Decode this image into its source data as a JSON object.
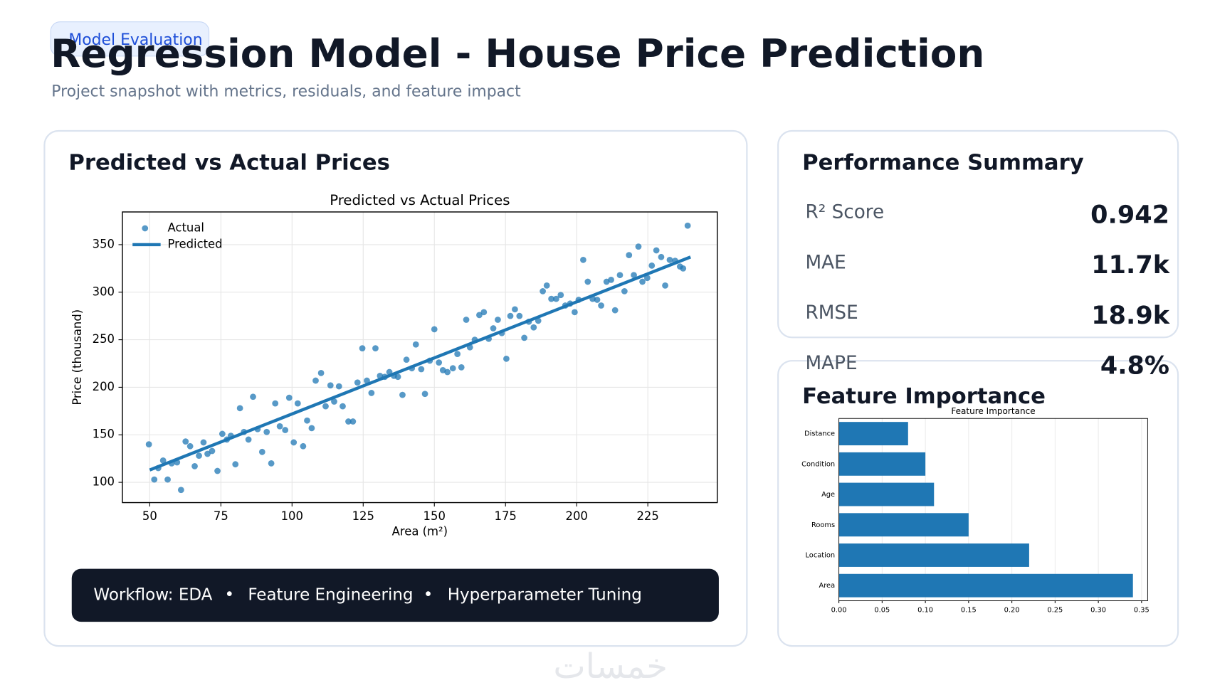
{
  "header": {
    "badge": "Model Evaluation",
    "title": "Regression Model - House Price Prediction",
    "subtitle": "Project snapshot with metrics, residuals, and feature impact"
  },
  "panels": {
    "scatter_title": "Predicted vs Actual Prices",
    "summary_title": "Performance Summary",
    "feature_title": "Feature Importance"
  },
  "metrics": [
    {
      "label": "R² Score",
      "value": "0.942"
    },
    {
      "label": "MAE",
      "value": "11.7k"
    },
    {
      "label": "RMSE",
      "value": "18.9k"
    },
    {
      "label": "MAPE",
      "value": "4.8%"
    }
  ],
  "workflow": {
    "items": [
      "Workflow: EDA",
      "Feature Engineering",
      "Hyperparameter Tuning"
    ],
    "separator": "•"
  },
  "footer": {
    "watermark": "خمسات"
  },
  "chart_data": [
    {
      "type": "scatter",
      "title": "Predicted vs Actual Prices",
      "xlabel": "Area (m²)",
      "ylabel": "Price (thousand)",
      "xlim": [
        40.4,
        249.4
      ],
      "ylim": [
        78.7,
        384.4
      ],
      "xticks": [
        50,
        75,
        100,
        125,
        150,
        175,
        200,
        225
      ],
      "yticks": [
        100,
        150,
        200,
        250,
        300,
        350
      ],
      "grid": true,
      "legend": "upper-left",
      "series": [
        {
          "name": "Actual",
          "color": "#1f77b4",
          "mode": "markers",
          "x": [
            49.7,
            51.6,
            53,
            54.7,
            56.3,
            57.7,
            59.6,
            61,
            62.6,
            64.2,
            65.8,
            67.3,
            68.9,
            70.3,
            71.9,
            73.8,
            75.5,
            77.1,
            78.5,
            80.1,
            81.7,
            83.1,
            84.7,
            86.3,
            87.9,
            89.5,
            91.1,
            92.7,
            94.1,
            95.7,
            97.6,
            99,
            100.6,
            102,
            103.9,
            105.3,
            106.9,
            108.3,
            110.2,
            111.8,
            113.5,
            114.8,
            116.5,
            117.8,
            119.8,
            121.4,
            123,
            124.7,
            126.3,
            127.9,
            129.3,
            130.9,
            132.6,
            134.2,
            135.8,
            137.2,
            138.8,
            140.2,
            142.1,
            143.5,
            145.4,
            146.7,
            148.4,
            150,
            151.6,
            153,
            154.6,
            156.5,
            158.1,
            159.5,
            161.2,
            162.5,
            164.2,
            165.8,
            167.4,
            169.1,
            170.7,
            172.3,
            173.7,
            175.3,
            176.7,
            178.3,
            179.9,
            181.6,
            183.2,
            184.9,
            186.5,
            188.1,
            189.5,
            191.1,
            192.8,
            194.4,
            196,
            197.7,
            199.3,
            200.7,
            202.3,
            203.9,
            205.6,
            207.2,
            208.6,
            210.5,
            212.1,
            213.5,
            215.2,
            216.8,
            218.4,
            220.1,
            221.7,
            223.1,
            224.8,
            226.4,
            228,
            229.7,
            231.1,
            232.7,
            234.6,
            236.3,
            237.4,
            239
          ],
          "values": [
            140,
            103,
            115,
            123,
            103,
            120,
            121,
            92,
            143,
            138,
            117,
            128,
            142,
            130,
            133,
            112,
            151,
            145,
            149,
            119,
            178,
            153,
            145,
            190,
            156,
            132,
            153,
            120,
            183,
            159,
            155,
            189,
            142,
            183,
            138,
            165,
            157,
            207,
            215,
            180,
            202,
            185,
            201,
            180,
            164,
            164,
            205,
            241,
            207,
            194,
            241,
            212,
            211,
            216,
            212,
            211,
            192,
            229,
            220,
            245,
            219,
            193,
            228,
            261,
            226,
            218,
            216,
            220,
            235,
            221,
            271,
            242,
            250,
            276,
            279,
            251,
            262,
            271,
            257,
            230,
            275,
            282,
            275,
            252,
            269,
            263,
            270,
            301,
            307,
            293,
            293,
            297,
            286,
            288,
            279,
            292,
            334,
            311,
            293,
            292,
            286,
            311,
            313,
            281,
            318,
            301,
            339,
            318,
            348,
            311,
            315,
            328,
            344,
            337,
            307,
            334,
            333,
            327,
            325,
            370
          ]
        },
        {
          "name": "Predicted",
          "color": "#1f77b4",
          "mode": "line",
          "x": [
            50,
            240
          ],
          "values": [
            113,
            337
          ]
        }
      ]
    },
    {
      "type": "barh",
      "title": "Feature Importance",
      "color": "#1f77b4",
      "categories": [
        "Distance",
        "Condition",
        "Age",
        "Rooms",
        "Location",
        "Area"
      ],
      "values": [
        0.08,
        0.1,
        0.11,
        0.15,
        0.22,
        0.34
      ],
      "xlim": [
        0,
        0.357
      ],
      "xticks": [
        {
          "value": 0,
          "label": "0.00"
        },
        {
          "value": 0.05,
          "label": "0.05"
        },
        {
          "value": 0.1,
          "label": "0.10"
        },
        {
          "value": 0.15,
          "label": "0.15"
        },
        {
          "value": 0.2,
          "label": "0.20"
        },
        {
          "value": 0.25,
          "label": "0.25"
        },
        {
          "value": 0.3,
          "label": "0.30"
        },
        {
          "value": 0.35,
          "label": "0.35"
        }
      ],
      "grid": true
    }
  ]
}
